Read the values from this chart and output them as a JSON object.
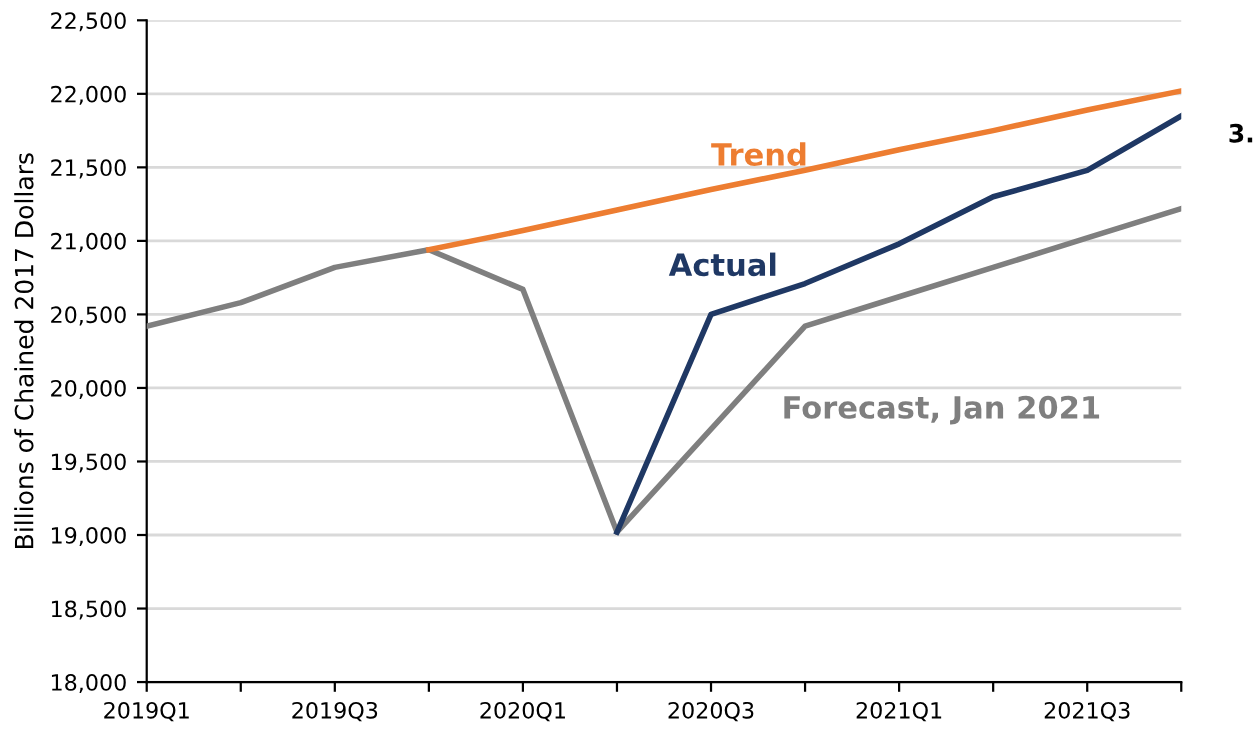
{
  "chart_data": {
    "type": "line",
    "ylabel": "Billions of Chained 2017 Dollars",
    "categories": [
      "2019Q1",
      null,
      "2019Q3",
      null,
      "2020Q1",
      null,
      "2020Q3",
      null,
      "2021Q1",
      null,
      "2021Q3",
      null
    ],
    "series": [
      {
        "name": "Forecast, Jan 2021",
        "color": "#7f7f7f",
        "values": [
          20420,
          20580,
          20820,
          20940,
          20670,
          19020,
          19720,
          20420,
          20620,
          20820,
          21020,
          21220
        ]
      },
      {
        "name": "Actual",
        "color": "#1f3864",
        "values": [
          null,
          null,
          null,
          null,
          null,
          19020,
          20500,
          20710,
          20980,
          21300,
          21480,
          21850
        ]
      },
      {
        "name": "Trend",
        "color": "#ed7d31",
        "values": [
          null,
          null,
          null,
          20940,
          21070,
          21210,
          21350,
          21480,
          21620,
          21750,
          21890,
          22020
        ]
      }
    ],
    "ylim": [
      18000,
      22500
    ],
    "yticks": [
      {
        "value": 18000,
        "label": "18,000"
      },
      {
        "value": 18500,
        "label": "18,500"
      },
      {
        "value": 19000,
        "label": "19,000"
      },
      {
        "value": 19500,
        "label": "19,500"
      },
      {
        "value": 20000,
        "label": "20,000"
      },
      {
        "value": 20500,
        "label": "20,500"
      },
      {
        "value": 21000,
        "label": "21,000"
      },
      {
        "value": 21500,
        "label": "21,500"
      },
      {
        "value": 22000,
        "label": "22,000"
      },
      {
        "value": 22500,
        "label": "22,500"
      }
    ],
    "grid": "y",
    "legend": false,
    "marker": "none",
    "line_style": "solid",
    "annotations": [
      "3."
    ]
  }
}
